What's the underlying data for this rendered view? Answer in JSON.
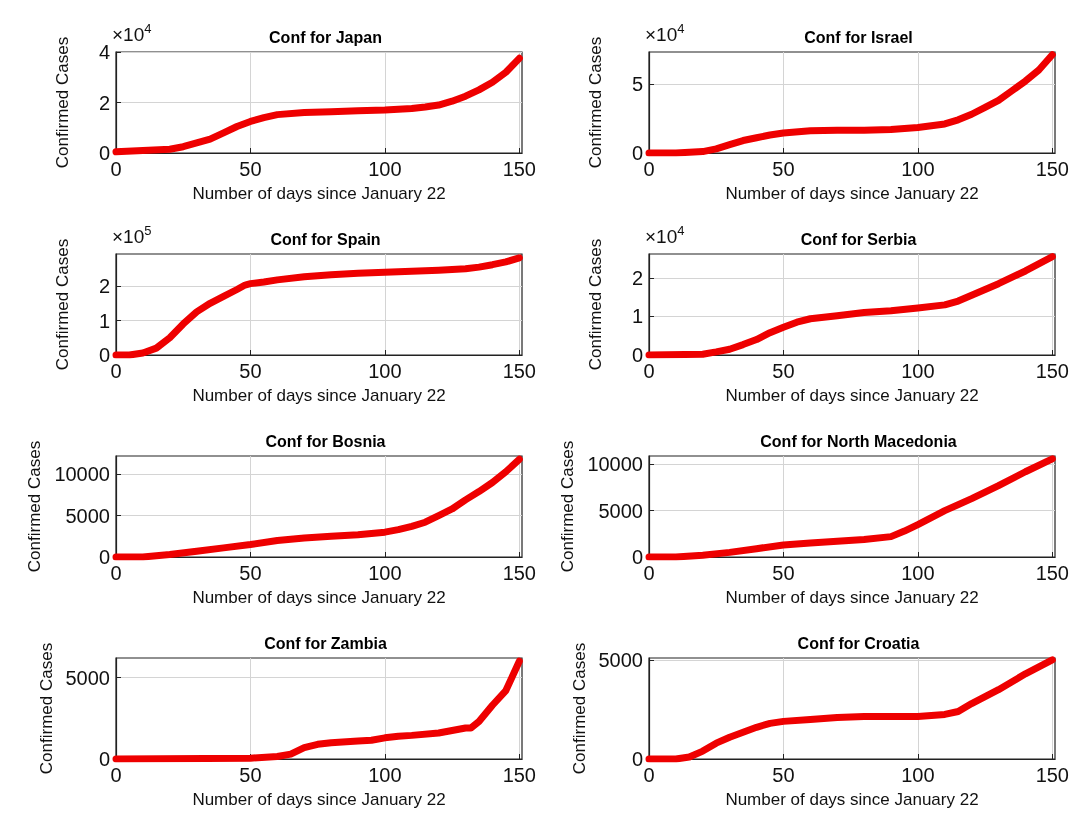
{
  "chart_data": [
    {
      "type": "line",
      "title": "Conf for Japan",
      "xlabel": "Number of days since January 22",
      "ylabel": "Confirmed Cases",
      "annotations": [
        "×10$^{4}$"
      ],
      "xlim": [
        0,
        151
      ],
      "xticks": [
        0,
        50,
        100,
        150
      ],
      "ylim": [
        0,
        4
      ],
      "yticks": [
        0,
        2,
        4
      ],
      "grid": true,
      "line_style": "solid",
      "series": [
        {
          "color": "#ee0000",
          "x": [
            0,
            10,
            20,
            25,
            30,
            35,
            40,
            45,
            50,
            55,
            60,
            70,
            80,
            90,
            100,
            110,
            115,
            120,
            125,
            130,
            135,
            140,
            145,
            150
          ],
          "values": [
            0.05,
            0.1,
            0.15,
            0.25,
            0.4,
            0.55,
            0.8,
            1.05,
            1.25,
            1.4,
            1.52,
            1.6,
            1.63,
            1.67,
            1.7,
            1.76,
            1.82,
            1.9,
            2.05,
            2.25,
            2.5,
            2.8,
            3.2,
            3.75
          ]
        }
      ]
    },
    {
      "type": "line",
      "title": "Conf for Israel",
      "xlabel": "Number of days since January 22",
      "ylabel": "Confirmed Cases",
      "annotations": [
        "×10$^{4}$"
      ],
      "xlim": [
        0,
        151
      ],
      "xticks": [
        0,
        50,
        100,
        150
      ],
      "ylim": [
        0,
        7.3
      ],
      "yticks": [
        0,
        5
      ],
      "grid": true,
      "line_style": "solid",
      "series": [
        {
          "color": "#ee0000",
          "x": [
            0,
            10,
            20,
            25,
            30,
            35,
            40,
            45,
            50,
            60,
            70,
            80,
            90,
            100,
            110,
            115,
            120,
            125,
            130,
            135,
            140,
            145,
            150
          ],
          "values": [
            0,
            0,
            0.1,
            0.3,
            0.6,
            0.9,
            1.1,
            1.3,
            1.45,
            1.6,
            1.65,
            1.65,
            1.7,
            1.85,
            2.1,
            2.4,
            2.8,
            3.3,
            3.8,
            4.5,
            5.2,
            6,
            7.1
          ]
        }
      ]
    },
    {
      "type": "line",
      "title": "Conf for Spain",
      "xlabel": "Number of days since January 22",
      "ylabel": "Confirmed Cases",
      "annotations": [
        "×10$^{5}$"
      ],
      "xlim": [
        0,
        151
      ],
      "xticks": [
        0,
        50,
        100,
        150
      ],
      "ylim": [
        0,
        2.93
      ],
      "yticks": [
        0,
        1,
        2
      ],
      "grid": true,
      "line_style": "solid",
      "series": [
        {
          "color": "#ee0000",
          "x": [
            0,
            5,
            10,
            15,
            20,
            25,
            30,
            35,
            40,
            45,
            48,
            50,
            55,
            60,
            70,
            80,
            90,
            100,
            110,
            120,
            130,
            135,
            140,
            145,
            150
          ],
          "values": [
            0,
            0,
            0.06,
            0.2,
            0.5,
            0.9,
            1.25,
            1.5,
            1.7,
            1.9,
            2.03,
            2.07,
            2.12,
            2.18,
            2.27,
            2.33,
            2.37,
            2.4,
            2.43,
            2.46,
            2.5,
            2.55,
            2.62,
            2.7,
            2.82
          ]
        }
      ]
    },
    {
      "type": "line",
      "title": "Conf for Serbia",
      "xlabel": "Number of days since January 22",
      "ylabel": "Confirmed Cases",
      "annotations": [
        "×10$^{4}$"
      ],
      "xlim": [
        0,
        151
      ],
      "xticks": [
        0,
        50,
        100,
        150
      ],
      "ylim": [
        0,
        2.62
      ],
      "yticks": [
        0,
        1,
        2
      ],
      "grid": true,
      "line_style": "solid",
      "series": [
        {
          "color": "#ee0000",
          "x": [
            0,
            20,
            25,
            30,
            35,
            40,
            45,
            50,
            55,
            60,
            70,
            80,
            90,
            100,
            110,
            115,
            120,
            130,
            140,
            150
          ],
          "values": [
            0,
            0.02,
            0.08,
            0.15,
            0.27,
            0.4,
            0.58,
            0.72,
            0.85,
            0.94,
            1.02,
            1.1,
            1.15,
            1.22,
            1.3,
            1.4,
            1.55,
            1.85,
            2.18,
            2.55
          ]
        }
      ]
    },
    {
      "type": "line",
      "title": "Conf for Bosnia",
      "xlabel": "Number of days since January 22",
      "ylabel": "Confirmed Cases",
      "xlim": [
        0,
        151
      ],
      "xticks": [
        0,
        50,
        100,
        150
      ],
      "ylim": [
        0,
        12200
      ],
      "yticks": [
        0,
        5000,
        10000
      ],
      "grid": true,
      "line_style": "solid",
      "series": [
        {
          "color": "#ee0000",
          "x": [
            0,
            10,
            20,
            30,
            40,
            50,
            60,
            70,
            80,
            90,
            100,
            105,
            110,
            115,
            120,
            125,
            130,
            135,
            140,
            145,
            150
          ],
          "values": [
            0,
            0,
            300,
            700,
            1100,
            1500,
            2000,
            2300,
            2500,
            2700,
            3000,
            3300,
            3700,
            4200,
            5000,
            5800,
            6900,
            7900,
            9000,
            10300,
            11800
          ]
        }
      ]
    },
    {
      "type": "line",
      "title": "Conf for North Macedonia",
      "xlabel": "Number of days since January 22",
      "ylabel": "Confirmed Cases",
      "xlim": [
        0,
        151
      ],
      "xticks": [
        0,
        50,
        100,
        150
      ],
      "ylim": [
        0,
        10900
      ],
      "yticks": [
        0,
        5000,
        10000
      ],
      "grid": true,
      "line_style": "solid",
      "series": [
        {
          "color": "#ee0000",
          "x": [
            0,
            10,
            20,
            30,
            40,
            50,
            60,
            70,
            80,
            90,
            95,
            100,
            110,
            120,
            130,
            140,
            150
          ],
          "values": [
            0,
            0,
            200,
            500,
            900,
            1300,
            1500,
            1700,
            1900,
            2200,
            2800,
            3500,
            5000,
            6300,
            7700,
            9200,
            10600
          ]
        }
      ]
    },
    {
      "type": "line",
      "title": "Conf for Zambia",
      "xlabel": "Number of days since January 22",
      "ylabel": "Confirmed Cases",
      "xlim": [
        0,
        151
      ],
      "xticks": [
        0,
        50,
        100,
        150
      ],
      "ylim": [
        0,
        6200
      ],
      "yticks": [
        0,
        5000
      ],
      "grid": true,
      "line_style": "solid",
      "series": [
        {
          "color": "#ee0000",
          "x": [
            0,
            50,
            60,
            65,
            70,
            75,
            80,
            90,
            95,
            100,
            105,
            110,
            120,
            125,
            130,
            132,
            135,
            140,
            145,
            150
          ],
          "values": [
            0,
            50,
            150,
            300,
            700,
            900,
            1000,
            1100,
            1150,
            1300,
            1400,
            1450,
            1600,
            1750,
            1900,
            1900,
            2300,
            3300,
            4200,
            6000
          ]
        }
      ]
    },
    {
      "type": "line",
      "title": "Conf for Croatia",
      "xlabel": "Number of days since January 22",
      "ylabel": "Confirmed Cases",
      "xlim": [
        0,
        151
      ],
      "xticks": [
        0,
        50,
        100,
        150
      ],
      "ylim": [
        0,
        5100
      ],
      "yticks": [
        0,
        5000
      ],
      "grid": true,
      "line_style": "solid",
      "series": [
        {
          "color": "#ee0000",
          "x": [
            0,
            10,
            15,
            20,
            25,
            30,
            40,
            45,
            50,
            60,
            70,
            80,
            90,
            100,
            110,
            115,
            120,
            130,
            140,
            150
          ],
          "values": [
            0,
            0,
            100,
            400,
            800,
            1100,
            1600,
            1800,
            1900,
            2000,
            2100,
            2150,
            2150,
            2150,
            2250,
            2400,
            2800,
            3500,
            4300,
            5000
          ]
        }
      ]
    }
  ]
}
